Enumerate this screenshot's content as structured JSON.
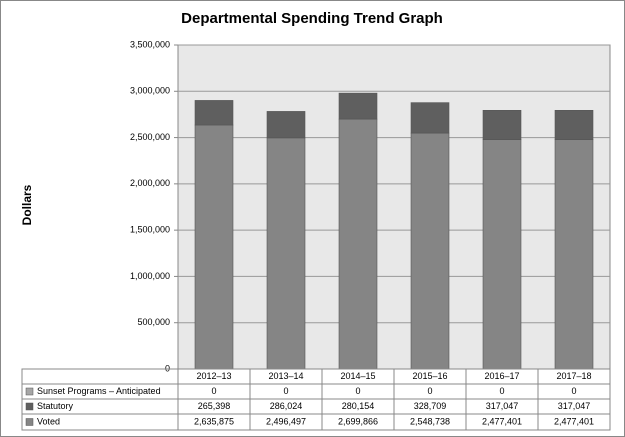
{
  "chart_data": {
    "type": "stacked_bar",
    "title": "Departmental Spending Trend Graph",
    "y_label": "Dollars",
    "categories": [
      "2012–13",
      "2013–14",
      "2014–15",
      "2015–16",
      "2016–17",
      "2017–18"
    ],
    "series": [
      {
        "name": "Sunset Programs – Anticipated",
        "color": "#a6a6a6",
        "values": [
          0,
          0,
          0,
          0,
          0,
          0
        ]
      },
      {
        "name": "Statutory",
        "color": "#5f5f5f",
        "values": [
          265398,
          286024,
          280154,
          328709,
          317047,
          317047
        ],
        "value_labels": [
          "265,398",
          "286,024",
          "280,154",
          "328,709",
          "317,047",
          "317,047"
        ]
      },
      {
        "name": "Voted",
        "color": "#858585",
        "values": [
          2635875,
          2496497,
          2699866,
          2548738,
          2477401,
          2477401
        ],
        "value_labels": [
          "2,635,875",
          "2,496,497",
          "2,699,866",
          "2,548,738",
          "2,477,401",
          "2,477,401"
        ]
      }
    ],
    "ylim": [
      0,
      3500000
    ],
    "yticks": [
      0,
      {
        "value": 500000,
        "label": "500,000"
      },
      {
        "value": 1000000,
        "label": "1,000,000"
      },
      {
        "value": 1500000,
        "label": "1,500,000"
      },
      {
        "value": 2000000,
        "label": "2,000,000"
      },
      {
        "value": 2500000,
        "label": "2,500,000"
      },
      {
        "value": 3000000,
        "label": "3,000,000"
      },
      {
        "value": 3500000,
        "label": "3,500,000"
      }
    ],
    "grid": true
  }
}
